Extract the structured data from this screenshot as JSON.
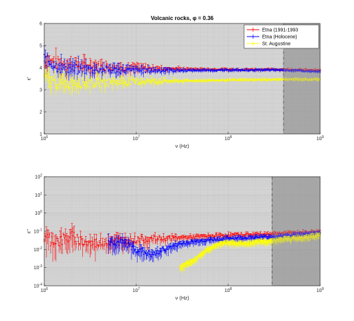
{
  "chart_data": [
    {
      "type": "scatter",
      "title": "Volcanic rocks, φ = 0.36",
      "xlabel": "ν (Hz)",
      "ylabel": "ε'",
      "x_scale": "log",
      "xlim": [
        1000000,
        1000000000
      ],
      "ylim": [
        1,
        6
      ],
      "x_ticks": [
        "10^6",
        "10^7",
        "10^8",
        "10^9"
      ],
      "y_ticks": [
        "1",
        "2",
        "3",
        "4",
        "5",
        "6"
      ],
      "grid": true,
      "error_bars": true,
      "shaded_region_x": [
        400000000,
        1000000000
      ],
      "legend_position": "top-right",
      "series": [
        {
          "name": "Etna (1991-1993",
          "color": "#ff0000",
          "x": [
            1000000,
            1300000,
            1600000,
            2000000,
            3000000,
            5000000,
            10000000,
            30000000,
            100000000,
            400000000,
            1000000000
          ],
          "y": [
            4.3,
            4.2,
            4.1,
            4.1,
            4.05,
            4.0,
            3.95,
            3.92,
            3.9,
            3.9,
            3.85
          ]
        },
        {
          "name": "Etna (Holocene)",
          "color": "#0000ff",
          "x": [
            1000000,
            1300000,
            1600000,
            2000000,
            3000000,
            5000000,
            10000000,
            30000000,
            100000000,
            400000000,
            1000000000
          ],
          "y": [
            4.4,
            4.1,
            3.95,
            3.9,
            3.9,
            3.88,
            3.86,
            3.86,
            3.87,
            3.88,
            3.8
          ]
        },
        {
          "name": "St. Augustine",
          "color": "#ffff00",
          "x": [
            1000000,
            1300000,
            1600000,
            2000000,
            3000000,
            5000000,
            10000000,
            30000000,
            100000000,
            400000000,
            1000000000
          ],
          "y": [
            3.5,
            3.3,
            3.25,
            3.3,
            3.3,
            3.32,
            3.35,
            3.38,
            3.42,
            3.45,
            3.45
          ]
        }
      ]
    },
    {
      "type": "scatter",
      "title": "",
      "xlabel": "ν (Hz)",
      "ylabel": "ε''",
      "x_scale": "log",
      "y_scale": "log",
      "xlim": [
        1000000,
        1000000000
      ],
      "ylim": [
        0.0001,
        100
      ],
      "x_ticks": [
        "10^6",
        "10^7",
        "10^8",
        "10^9"
      ],
      "y_ticks": [
        "10^-4",
        "10^-3",
        "10^-2",
        "10^-1",
        "10^0",
        "10^1",
        "10^2"
      ],
      "grid": true,
      "error_bars": true,
      "shaded_region_x": [
        300000000,
        1000000000
      ],
      "series": [
        {
          "name": "Etna (1991-1993",
          "color": "#ff0000",
          "x": [
            1000000,
            1500000,
            2000000,
            3000000,
            5000000,
            10000000,
            20000000,
            50000000,
            100000000,
            300000000,
            1000000000
          ],
          "y": [
            0.04,
            0.03,
            0.05,
            0.02,
            0.03,
            0.035,
            0.04,
            0.05,
            0.06,
            0.07,
            0.09
          ]
        },
        {
          "name": "Etna (Holocene)",
          "color": "#0000ff",
          "x": [
            5000000,
            8000000,
            10000000,
            15000000,
            20000000,
            30000000,
            50000000,
            100000000,
            300000000,
            1000000000
          ],
          "y": [
            0.03,
            0.02,
            0.01,
            0.005,
            0.01,
            0.02,
            0.03,
            0.04,
            0.05,
            0.08
          ]
        },
        {
          "name": "St. Augustine",
          "color": "#ffff00",
          "x": [
            30000000,
            40000000,
            50000000,
            60000000,
            80000000,
            100000000,
            150000000,
            200000000,
            300000000,
            1000000000
          ],
          "y": [
            0.001,
            0.002,
            0.005,
            0.01,
            0.02,
            0.025,
            0.02,
            0.025,
            0.03,
            0.06
          ]
        }
      ]
    }
  ]
}
